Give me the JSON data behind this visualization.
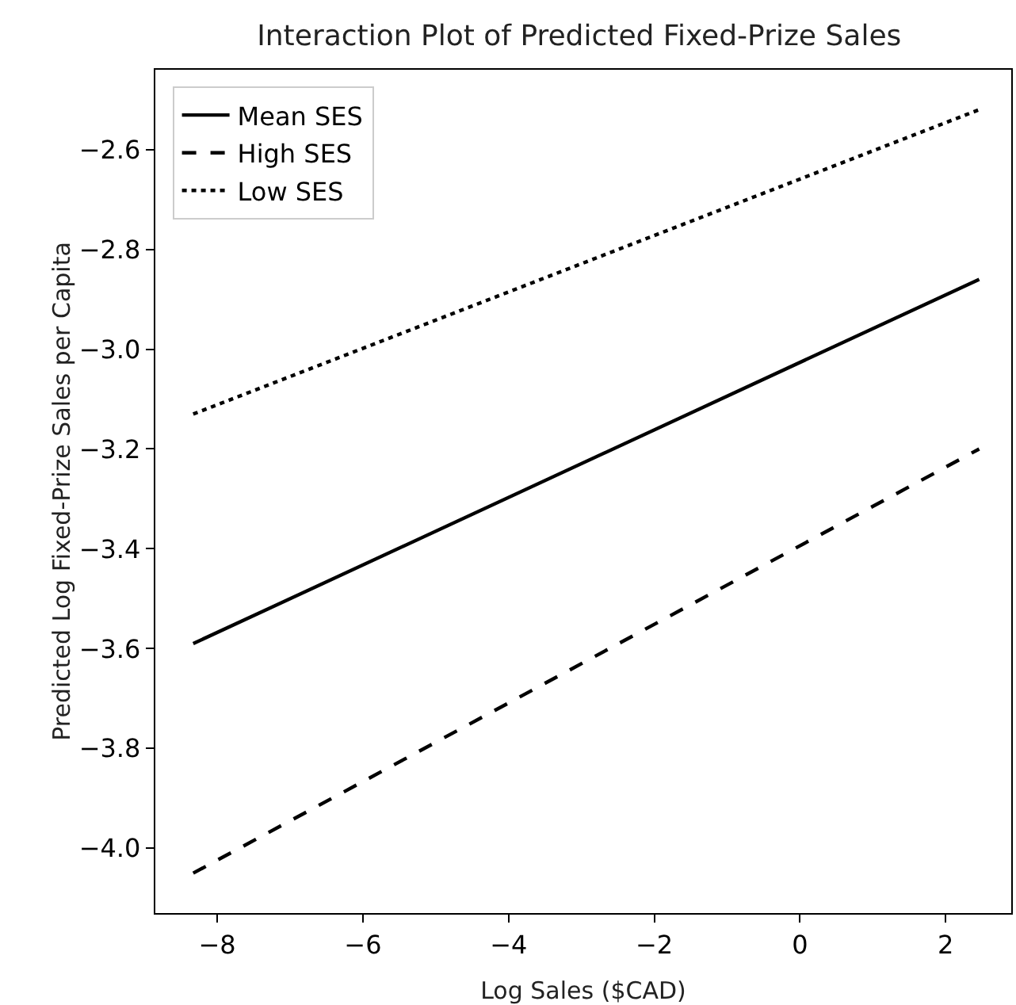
{
  "chart_data": {
    "type": "line",
    "title": "Interaction Plot of Predicted Fixed-Prize Sales",
    "xlabel": "Log Sales ($CAD)",
    "ylabel": "Predicted Log Fixed-Prize Sales per Capita",
    "x": [
      -8.33,
      2.46
    ],
    "series": [
      {
        "name": "Mean SES",
        "color": "#000000",
        "line_style": "solid",
        "values": [
          -3.59,
          -2.86
        ]
      },
      {
        "name": "High SES",
        "color": "#000000",
        "line_style": "dashed",
        "values": [
          -4.05,
          -3.2
        ]
      },
      {
        "name": "Low SES",
        "color": "#000000",
        "line_style": "dotted",
        "values": [
          -3.13,
          -2.52
        ]
      }
    ],
    "xlim": [
      -8.85,
      2.9
    ],
    "ylim": [
      -4.13,
      -2.44
    ],
    "xticks": [
      {
        "value": -8,
        "label": "−8"
      },
      {
        "value": -6,
        "label": "−6"
      },
      {
        "value": -4,
        "label": "−4"
      },
      {
        "value": -2,
        "label": "−2"
      },
      0,
      2
    ],
    "yticks": [
      {
        "value": -4.0,
        "label": "−4.0"
      },
      {
        "value": -3.8,
        "label": "−3.8"
      },
      {
        "value": -3.6,
        "label": "−3.6"
      },
      {
        "value": -3.4,
        "label": "−3.4"
      },
      {
        "value": -3.2,
        "label": "−3.2"
      },
      {
        "value": -3.0,
        "label": "−3.0"
      },
      {
        "value": -2.8,
        "label": "−2.8"
      },
      {
        "value": -2.6,
        "label": "−2.6"
      }
    ],
    "grid": false,
    "legend": "top left",
    "marker": "none"
  }
}
